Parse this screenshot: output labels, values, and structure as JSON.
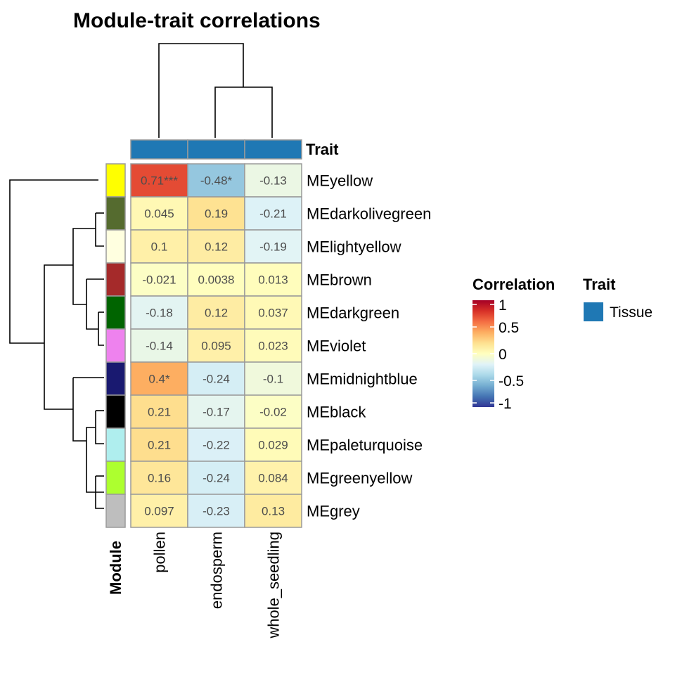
{
  "chart_data": {
    "type": "heatmap",
    "title": "Module-trait correlations",
    "rows": [
      "MEyellow",
      "MEdarkolivegreen",
      "MElightyellow",
      "MEbrown",
      "MEdarkgreen",
      "MEviolet",
      "MEmidnightblue",
      "MEblack",
      "MEpaleturquoise",
      "MEgreenyellow",
      "MEgrey"
    ],
    "row_colors": [
      "#FFFF00",
      "#556B2F",
      "#FFFFE0",
      "#A52A2A",
      "#006400",
      "#EE82EE",
      "#191970",
      "#000000",
      "#AFEEEE",
      "#ADFF2F",
      "#BEBEBE"
    ],
    "columns": [
      "pollen",
      "endosperm",
      "whole_seedling"
    ],
    "values": [
      [
        0.71,
        -0.48,
        -0.13
      ],
      [
        0.045,
        0.19,
        -0.21
      ],
      [
        0.1,
        0.12,
        -0.19
      ],
      [
        -0.021,
        0.0038,
        0.013
      ],
      [
        -0.18,
        0.12,
        0.037
      ],
      [
        -0.14,
        0.095,
        0.023
      ],
      [
        0.4,
        -0.24,
        -0.1
      ],
      [
        0.21,
        -0.17,
        -0.02
      ],
      [
        0.21,
        -0.22,
        0.029
      ],
      [
        0.16,
        -0.24,
        0.084
      ],
      [
        0.097,
        -0.23,
        0.13
      ]
    ],
    "labels": [
      [
        "0.71***",
        "-0.48*",
        "-0.13"
      ],
      [
        "0.045",
        "0.19",
        "-0.21"
      ],
      [
        "0.1",
        "0.12",
        "-0.19"
      ],
      [
        "-0.021",
        "0.0038",
        "0.013"
      ],
      [
        "-0.18",
        "0.12",
        "0.037"
      ],
      [
        "-0.14",
        "0.095",
        "0.023"
      ],
      [
        "0.4*",
        "-0.24",
        "-0.1"
      ],
      [
        "0.21",
        "-0.17",
        "-0.02"
      ],
      [
        "0.21",
        "-0.22",
        "0.029"
      ],
      [
        "0.16",
        "-0.24",
        "0.084"
      ],
      [
        "0.097",
        "-0.23",
        "0.13"
      ]
    ],
    "row_annotation_label": "Module",
    "column_annotation_label": "Trait",
    "column_annotation_color": "#1F78B4",
    "color_scale": {
      "title": "Correlation",
      "range": [
        -1,
        1
      ],
      "ticks": [
        "1",
        "0.5",
        "0",
        "-0.5",
        "-1"
      ],
      "colors": [
        "#313695",
        "#4575B4",
        "#74ADD1",
        "#ABD9E9",
        "#E0F3F8",
        "#FFFFBF",
        "#FEE090",
        "#FDAE61",
        "#F46D43",
        "#D73027",
        "#A50026"
      ]
    },
    "legend_trait": {
      "title": "Trait",
      "item": "Tissue",
      "color": "#1F78B4"
    }
  }
}
